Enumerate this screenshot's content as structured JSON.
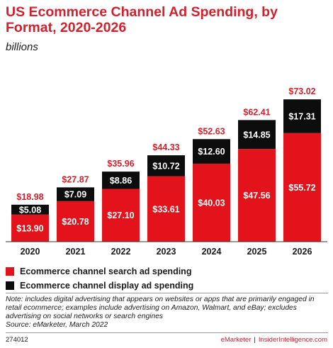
{
  "title": "US Ecommerce Channel Ad Spending, by Format, 2020-2026",
  "subtitle": "billions",
  "colors": {
    "search": "#e3131b",
    "display": "#0d0d0d",
    "accent": "#d4202c"
  },
  "chart_data": {
    "type": "bar",
    "stacked": true,
    "categories": [
      "2020",
      "2021",
      "2022",
      "2023",
      "2024",
      "2025",
      "2026"
    ],
    "series": [
      {
        "name": "Ecommerce channel search ad spending",
        "values": [
          13.9,
          20.78,
          27.1,
          33.61,
          40.03,
          47.56,
          55.72
        ],
        "labels": [
          "$13.90",
          "$20.78",
          "$27.10",
          "$33.61",
          "$40.03",
          "$47.56",
          "$55.72"
        ]
      },
      {
        "name": "Ecommerce channel display ad spending",
        "values": [
          5.08,
          7.09,
          8.86,
          10.72,
          12.6,
          14.85,
          17.31
        ],
        "labels": [
          "$5.08",
          "$7.09",
          "$8.86",
          "$10.72",
          "$12.60",
          "$14.85",
          "$17.31"
        ]
      }
    ],
    "totals": [
      18.98,
      27.87,
      35.96,
      44.33,
      52.63,
      62.41,
      73.02
    ],
    "total_labels": [
      "$18.98",
      "$27.87",
      "$35.96",
      "$44.33",
      "$52.63",
      "$62.41",
      "$73.02"
    ],
    "ylim": [
      0,
      80
    ],
    "grid": false,
    "legend_position": "bottom-left"
  },
  "legend": [
    {
      "label": "Ecommerce channel search ad spending"
    },
    {
      "label": "Ecommerce channel display ad spending"
    }
  ],
  "note": "Note: includes digital advertising that appears on websites or apps that are primarily engaged in retail ecommerce; examples include advertising on Amazon, Walmart, and eBay; excludes advertising on social networks or search engines",
  "source": "Source: eMarketer, March 2022",
  "footer": {
    "id": "274012",
    "brand_a": "eMarketer",
    "separator": "|",
    "brand_b": "InsiderIntelligence.com"
  }
}
